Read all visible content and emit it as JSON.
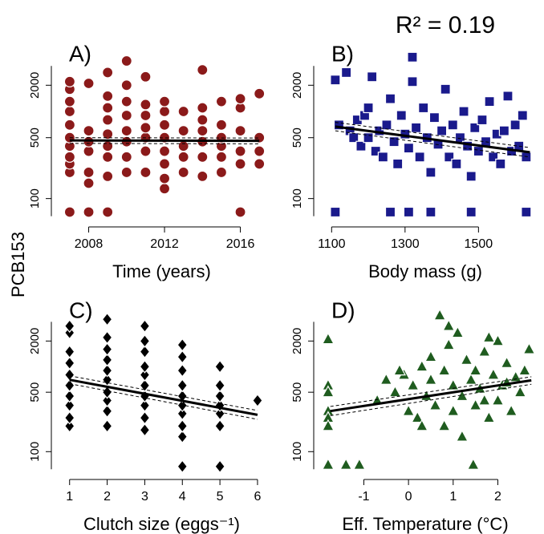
{
  "ylabel": "PCB153",
  "chart_data": [
    {
      "type": "scatter",
      "label": "A)",
      "xlabel": "Time (years)",
      "marker": "circle",
      "color": "#8b1a1a",
      "log_y": true,
      "xlim": [
        2006.2,
        2017.5
      ],
      "ylim": [
        56,
        4800
      ],
      "xticks": [
        2008,
        2012,
        2016
      ],
      "yticks": [
        100,
        500,
        2000
      ],
      "x": [
        2007,
        2007,
        2007,
        2007,
        2007,
        2007,
        2007,
        2007,
        2007,
        2007,
        2007,
        2008,
        2008,
        2008,
        2008,
        2008,
        2008,
        2008,
        2009,
        2009,
        2009,
        2009,
        2009,
        2009,
        2009,
        2009,
        2009,
        2010,
        2010,
        2010,
        2010,
        2010,
        2010,
        2010,
        2010,
        2011,
        2011,
        2011,
        2011,
        2011,
        2011,
        2011,
        2012,
        2012,
        2012,
        2012,
        2012,
        2012,
        2012,
        2012,
        2013,
        2013,
        2013,
        2013,
        2013,
        2014,
        2014,
        2014,
        2014,
        2014,
        2014,
        2014,
        2015,
        2015,
        2015,
        2015,
        2015,
        2015,
        2016,
        2016,
        2016,
        2016,
        2016,
        2016,
        2017,
        2017,
        2017,
        2017
      ],
      "y": [
        70,
        200,
        250,
        300,
        400,
        500,
        700,
        1000,
        1300,
        1800,
        2200,
        70,
        150,
        200,
        350,
        450,
        600,
        2100,
        70,
        180,
        300,
        400,
        550,
        800,
        1100,
        1500,
        2800,
        200,
        300,
        450,
        600,
        900,
        1300,
        2000,
        3800,
        200,
        350,
        500,
        650,
        900,
        1200,
        2500,
        130,
        170,
        250,
        350,
        500,
        700,
        1000,
        1300,
        200,
        300,
        400,
        600,
        1000,
        180,
        300,
        450,
        600,
        800,
        1100,
        3000,
        200,
        300,
        400,
        500,
        700,
        1300,
        70,
        250,
        350,
        600,
        1100,
        1400,
        250,
        350,
        500,
        1600
      ],
      "fit": {
        "x": [
          2007,
          2017
        ],
        "y": [
          465,
          460
        ],
        "lower": [
          430,
          425
        ],
        "upper": [
          500,
          495
        ]
      }
    },
    {
      "type": "scatter",
      "label": "B)",
      "xlabel": "Body mass (g)",
      "annotation": "R² = 0.19",
      "marker": "square",
      "color": "#1a1a8c",
      "log_y": true,
      "xlim": [
        1060,
        1650
      ],
      "ylim": [
        56,
        4800
      ],
      "xticks": [
        1100,
        1300,
        1500
      ],
      "yticks": [
        100,
        500,
        2000
      ],
      "x": [
        1110,
        1120,
        1140,
        1150,
        1160,
        1170,
        1180,
        1190,
        1200,
        1210,
        1220,
        1230,
        1240,
        1250,
        1260,
        1270,
        1280,
        1290,
        1300,
        1310,
        1320,
        1330,
        1340,
        1350,
        1360,
        1370,
        1380,
        1390,
        1400,
        1410,
        1420,
        1430,
        1440,
        1450,
        1460,
        1470,
        1480,
        1490,
        1500,
        1510,
        1520,
        1530,
        1540,
        1550,
        1560,
        1570,
        1580,
        1590,
        1600,
        1610,
        1620,
        1630,
        1110,
        1260,
        1310,
        1370,
        1480,
        1630,
        1320,
        1200
      ],
      "y": [
        2300,
        700,
        2800,
        600,
        500,
        800,
        400,
        900,
        1100,
        2500,
        350,
        600,
        300,
        700,
        1400,
        450,
        250,
        900,
        550,
        380,
        4200,
        650,
        300,
        1100,
        500,
        200,
        850,
        420,
        600,
        1800,
        300,
        700,
        250,
        500,
        1000,
        400,
        180,
        650,
        350,
        800,
        450,
        1300,
        300,
        550,
        250,
        600,
        1500,
        350,
        700,
        400,
        900,
        300,
        70,
        70,
        70,
        70,
        70,
        70,
        2200,
        500
      ],
      "fit": {
        "x": [
          1110,
          1640
        ],
        "y": [
          670,
          340
        ],
        "lower": [
          600,
          300
        ],
        "upper": [
          750,
          385
        ]
      }
    },
    {
      "type": "scatter",
      "label": "C)",
      "xlabel": "Clutch size (eggs⁻¹)",
      "marker": "diamond",
      "color": "#000000",
      "log_y": true,
      "xlim": [
        0.6,
        6.3
      ],
      "ylim": [
        56,
        4800
      ],
      "xticks": [
        1,
        2,
        3,
        4,
        5,
        6
      ],
      "yticks": [
        100,
        500,
        2000
      ],
      "x": [
        1,
        1,
        1,
        1,
        1,
        1,
        1,
        1,
        1,
        1,
        2,
        2,
        2,
        2,
        2,
        2,
        2,
        2,
        2,
        2,
        3,
        3,
        3,
        3,
        3,
        3,
        3,
        3,
        3,
        3,
        4,
        4,
        4,
        4,
        4,
        4,
        4,
        4,
        4,
        4,
        5,
        5,
        5,
        5,
        5,
        5,
        5,
        6
      ],
      "y": [
        200,
        250,
        350,
        450,
        600,
        800,
        1100,
        1500,
        2500,
        3000,
        200,
        300,
        400,
        500,
        700,
        900,
        1200,
        1600,
        2200,
        3600,
        180,
        250,
        350,
        450,
        600,
        800,
        1000,
        1500,
        2000,
        3000,
        67,
        150,
        200,
        280,
        350,
        450,
        600,
        900,
        1300,
        1800,
        67,
        200,
        280,
        350,
        450,
        600,
        1000,
        400
      ],
      "fit": {
        "x": [
          1,
          6
        ],
        "y": [
          700,
          271
        ],
        "lower": [
          630,
          240
        ],
        "upper": [
          780,
          305
        ]
      }
    },
    {
      "type": "scatter",
      "label": "D)",
      "xlabel": "Eff. Temperature (°C)",
      "marker": "triangle",
      "color": "#1f5c1f",
      "log_y": true,
      "xlim": [
        -2.05,
        2.8
      ],
      "ylim": [
        56,
        4800
      ],
      "xticks": [
        -1,
        0,
        1,
        2
      ],
      "yticks": [
        100,
        500,
        2000
      ],
      "x": [
        -1.8,
        -1.8,
        -1.8,
        -1.8,
        -1.8,
        -1.8,
        -1.8,
        -1.4,
        -1.1,
        1.45,
        -0.7,
        -0.5,
        -0.3,
        -0.1,
        0.0,
        0.1,
        0.2,
        0.3,
        0.4,
        0.5,
        0.6,
        0.7,
        0.8,
        0.8,
        0.9,
        1.0,
        1.0,
        1.1,
        1.2,
        1.3,
        1.4,
        1.5,
        1.5,
        1.6,
        1.7,
        1.8,
        1.9,
        2.0,
        2.0,
        2.1,
        2.2,
        2.3,
        2.4,
        2.5,
        2.6,
        2.7,
        0.3,
        0.9,
        1.2,
        1.7,
        2.2,
        -0.2,
        0.5,
        1.8
      ],
      "y": [
        2100,
        600,
        500,
        300,
        250,
        200,
        70,
        70,
        70,
        70,
        400,
        700,
        500,
        800,
        300,
        600,
        250,
        1000,
        450,
        700,
        350,
        4000,
        900,
        200,
        1800,
        600,
        300,
        2500,
        450,
        1200,
        700,
        350,
        900,
        550,
        1500,
        250,
        800,
        2000,
        400,
        600,
        1100,
        300,
        750,
        500,
        900,
        1600,
        200,
        3000,
        150,
        400,
        650,
        900,
        1300,
        2200
      ],
      "fit": {
        "x": [
          -1.75,
          2.75
        ],
        "y": [
          300,
          690
        ],
        "lower": [
          265,
          620
        ],
        "upper": [
          340,
          760
        ]
      }
    }
  ]
}
